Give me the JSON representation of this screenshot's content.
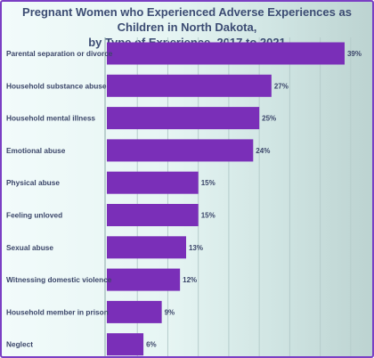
{
  "chart_data": {
    "type": "bar",
    "orientation": "horizontal",
    "title_lines": [
      "Pregnant Women who Experienced Adverse Experiences as Children in North Dakota,",
      "by Type of Experience, 2017 to 2021"
    ],
    "categories": [
      "Parental separation or divorce",
      "Household substance abuse",
      "Household mental illness",
      "Emotional abuse",
      "Physical abuse",
      "Feeling unloved",
      "Sexual abuse",
      "Witnessing domestic violence",
      "Household member in prison",
      "Neglect"
    ],
    "values": [
      39,
      27,
      25,
      24,
      15,
      15,
      13,
      12,
      9,
      6
    ],
    "value_labels": [
      "39%",
      "27%",
      "25%",
      "24%",
      "15%",
      "15%",
      "13%",
      "12%",
      "9%",
      "6%"
    ],
    "unit": "%",
    "xlim": [
      0,
      44
    ],
    "grid": true,
    "bar_color": "#7a2fb8"
  }
}
